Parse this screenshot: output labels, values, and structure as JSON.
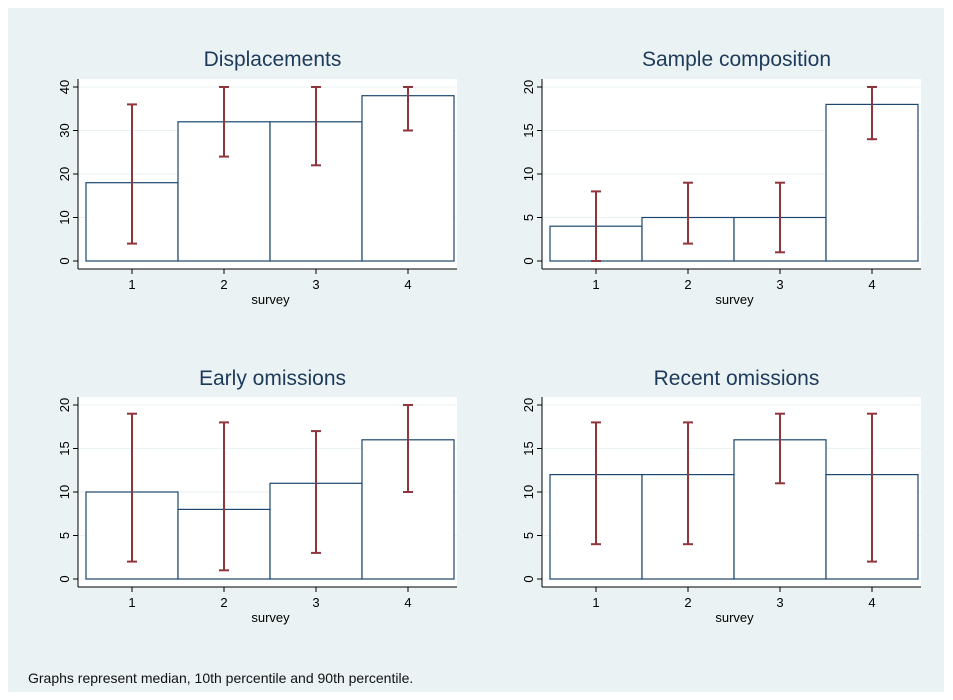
{
  "caption": "Graphs represent median, 10th percentile and 90th percentile.",
  "colors": {
    "background": "#eaf2f3",
    "bar_outline": "#1a476f",
    "error_bar": "#90353b",
    "plot_bg": "#ffffff",
    "grid": "#eaf2f3"
  },
  "chart_data": [
    {
      "type": "bar",
      "title": "Displacements",
      "xlabel": "survey",
      "ylabel": "",
      "categories": [
        "1",
        "2",
        "3",
        "4"
      ],
      "values": [
        18,
        32,
        32,
        38
      ],
      "error_low": [
        4,
        24,
        22,
        30
      ],
      "error_high": [
        36,
        40,
        40,
        40
      ],
      "ylim": [
        0,
        40
      ],
      "yticks": [
        0,
        10,
        20,
        30,
        40
      ],
      "grid": true
    },
    {
      "type": "bar",
      "title": "Sample composition",
      "xlabel": "survey",
      "ylabel": "",
      "categories": [
        "1",
        "2",
        "3",
        "4"
      ],
      "values": [
        4,
        5,
        5,
        18
      ],
      "error_low": [
        0,
        2,
        1,
        14
      ],
      "error_high": [
        8,
        9,
        9,
        20
      ],
      "ylim": [
        0,
        20
      ],
      "yticks": [
        0,
        5,
        10,
        15,
        20
      ],
      "grid": true
    },
    {
      "type": "bar",
      "title": "Early omissions",
      "xlabel": "survey",
      "ylabel": "",
      "categories": [
        "1",
        "2",
        "3",
        "4"
      ],
      "values": [
        10,
        8,
        11,
        16
      ],
      "error_low": [
        2,
        1,
        3,
        10
      ],
      "error_high": [
        19,
        18,
        17,
        20
      ],
      "ylim": [
        0,
        20
      ],
      "yticks": [
        0,
        5,
        10,
        15,
        20
      ],
      "grid": true
    },
    {
      "type": "bar",
      "title": "Recent omissions",
      "xlabel": "survey",
      "ylabel": "",
      "categories": [
        "1",
        "2",
        "3",
        "4"
      ],
      "values": [
        12,
        12,
        16,
        12
      ],
      "error_low": [
        4,
        4,
        11,
        2
      ],
      "error_high": [
        18,
        18,
        19,
        19
      ],
      "ylim": [
        0,
        20
      ],
      "yticks": [
        0,
        5,
        10,
        15,
        20
      ],
      "grid": true
    }
  ]
}
